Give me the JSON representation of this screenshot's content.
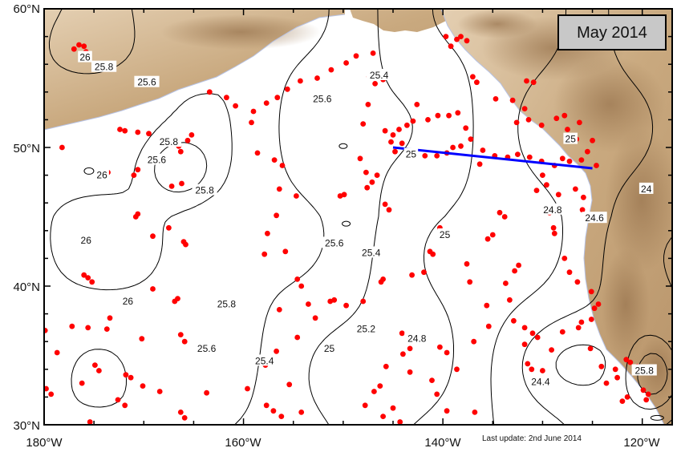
{
  "title": "May 2014",
  "update_note": "Last update: 2nd June 2014",
  "axes": {
    "lon_ticks": [
      "180°W",
      "160°W",
      "140°W",
      "120°W"
    ],
    "lat_ticks": [
      "60°N",
      "50°N",
      "40°N",
      "30°N"
    ],
    "lon_range": [
      -180,
      -117
    ],
    "lat_range": [
      30,
      60
    ]
  },
  "colors": {
    "land": "#d8bf9e",
    "land_shadow": "#a8875f",
    "contour": "#000000",
    "float": "#ff0000",
    "section": "#0000ff",
    "title_box": "#c8c8c8"
  },
  "section_line": {
    "from": {
      "lon": -145,
      "lat": 50
    },
    "to": {
      "lon": -125,
      "lat": 48.5
    }
  },
  "contour_labels": [
    {
      "text": "26",
      "lon": -175.9,
      "lat": 56.5
    },
    {
      "text": "25.8",
      "lon": -174.0,
      "lat": 55.8
    },
    {
      "text": "25.6",
      "lon": -169.7,
      "lat": 54.7
    },
    {
      "text": "25.6",
      "lon": -152.1,
      "lat": 53.5
    },
    {
      "text": "25.4",
      "lon": -146.4,
      "lat": 55.2
    },
    {
      "text": "25.8",
      "lon": -167.5,
      "lat": 50.4
    },
    {
      "text": "25.6",
      "lon": -168.7,
      "lat": 49.1
    },
    {
      "text": "26",
      "lon": -174.2,
      "lat": 48.0
    },
    {
      "text": "25.8",
      "lon": -163.9,
      "lat": 46.9
    },
    {
      "text": "25.6",
      "lon": -150.9,
      "lat": 43.1
    },
    {
      "text": "25.4",
      "lon": -147.2,
      "lat": 42.4
    },
    {
      "text": "26",
      "lon": -175.8,
      "lat": 43.3
    },
    {
      "text": "26",
      "lon": -171.6,
      "lat": 38.9
    },
    {
      "text": "25.8",
      "lon": -161.7,
      "lat": 38.7
    },
    {
      "text": "25.6",
      "lon": -163.7,
      "lat": 35.5
    },
    {
      "text": "25.4",
      "lon": -157.9,
      "lat": 34.6
    },
    {
      "text": "25.2",
      "lon": -147.7,
      "lat": 36.9
    },
    {
      "text": "25",
      "lon": -151.4,
      "lat": 35.5
    },
    {
      "text": "24.8",
      "lon": -142.6,
      "lat": 36.2
    },
    {
      "text": "25",
      "lon": -139.8,
      "lat": 43.7
    },
    {
      "text": "24.8",
      "lon": -129.0,
      "lat": 45.5
    },
    {
      "text": "24.6",
      "lon": -124.8,
      "lat": 44.9
    },
    {
      "text": "24.4",
      "lon": -130.2,
      "lat": 33.1
    },
    {
      "text": "25",
      "lon": -127.2,
      "lat": 50.6
    },
    {
      "text": "25",
      "lon": -143.2,
      "lat": 49.5
    },
    {
      "text": "24",
      "lon": -119.6,
      "lat": 47.0
    },
    {
      "text": "25.8",
      "lon": -119.8,
      "lat": 33.9
    }
  ],
  "floats": [
    [
      -176.5,
      57.4
    ],
    [
      -176.0,
      57.3
    ],
    [
      -177.0,
      57.1
    ],
    [
      -175.8,
      56.9
    ],
    [
      -171.9,
      51.2
    ],
    [
      -172.4,
      51.3
    ],
    [
      -170.6,
      51.1
    ],
    [
      -169.5,
      51.0
    ],
    [
      -168.2,
      50.3
    ],
    [
      -165.2,
      50.9
    ],
    [
      -165.6,
      50.5
    ],
    [
      -166.5,
      50.1
    ],
    [
      -166.3,
      49.7
    ],
    [
      -170.6,
      48.4
    ],
    [
      -171.0,
      48.0
    ],
    [
      -174.2,
      48.1
    ],
    [
      -173.6,
      48.2
    ],
    [
      -178.2,
      50.0
    ],
    [
      -167.2,
      47.2
    ],
    [
      -166.2,
      47.4
    ],
    [
      -170.6,
      45.2
    ],
    [
      -170.8,
      45.0
    ],
    [
      -167.5,
      44.2
    ],
    [
      -166.0,
      43.2
    ],
    [
      -165.8,
      43.0
    ],
    [
      -169.1,
      43.6
    ],
    [
      -176.0,
      40.8
    ],
    [
      -175.6,
      40.6
    ],
    [
      -175.2,
      40.3
    ],
    [
      -169.1,
      39.8
    ],
    [
      -166.6,
      39.1
    ],
    [
      -166.9,
      38.9
    ],
    [
      -173.4,
      37.7
    ],
    [
      -179.9,
      36.8
    ],
    [
      -177.2,
      37.1
    ],
    [
      -175.6,
      37.0
    ],
    [
      -173.7,
      36.9
    ],
    [
      -166.3,
      36.5
    ],
    [
      -165.9,
      36.0
    ],
    [
      -170.2,
      36.2
    ],
    [
      -178.7,
      35.2
    ],
    [
      -174.9,
      34.3
    ],
    [
      -174.5,
      33.9
    ],
    [
      -171.8,
      33.6
    ],
    [
      -171.3,
      33.4
    ],
    [
      -170.1,
      32.8
    ],
    [
      -168.4,
      32.4
    ],
    [
      -179.8,
      32.6
    ],
    [
      -179.3,
      32.2
    ],
    [
      -176.2,
      33.0
    ],
    [
      -172.6,
      31.8
    ],
    [
      -171.9,
      31.4
    ],
    [
      -175.4,
      30.2
    ],
    [
      -166.3,
      30.9
    ],
    [
      -165.9,
      30.5
    ],
    [
      -163.7,
      32.3
    ],
    [
      -159.6,
      32.6
    ],
    [
      -157.7,
      31.4
    ],
    [
      -157.0,
      31.0
    ],
    [
      -156.2,
      30.6
    ],
    [
      -155.4,
      32.9
    ],
    [
      -154.2,
      30.9
    ],
    [
      -163.4,
      54.0
    ],
    [
      -161.7,
      53.6
    ],
    [
      -160.8,
      53.0
    ],
    [
      -159.0,
      52.6
    ],
    [
      -157.7,
      53.2
    ],
    [
      -156.6,
      53.6
    ],
    [
      -155.6,
      54.2
    ],
    [
      -154.3,
      54.8
    ],
    [
      -152.6,
      55.0
    ],
    [
      -151.2,
      55.6
    ],
    [
      -149.7,
      56.1
    ],
    [
      -148.7,
      56.6
    ],
    [
      -147.0,
      56.8
    ],
    [
      -159.2,
      51.8
    ],
    [
      -158.6,
      49.6
    ],
    [
      -156.9,
      49.1
    ],
    [
      -156.1,
      48.7
    ],
    [
      -156.4,
      47.0
    ],
    [
      -154.7,
      46.5
    ],
    [
      -156.7,
      45.1
    ],
    [
      -157.6,
      43.8
    ],
    [
      -157.9,
      42.3
    ],
    [
      -155.8,
      42.5
    ],
    [
      -154.6,
      40.5
    ],
    [
      -154.2,
      40.0
    ],
    [
      -153.5,
      38.7
    ],
    [
      -152.8,
      37.7
    ],
    [
      -154.6,
      36.3
    ],
    [
      -156.7,
      35.3
    ],
    [
      -157.8,
      34.3
    ],
    [
      -156.4,
      38.3
    ],
    [
      -151.3,
      38.9
    ],
    [
      -150.9,
      39.0
    ],
    [
      -149.7,
      38.6
    ],
    [
      -148.0,
      38.9
    ],
    [
      -150.3,
      46.5
    ],
    [
      -149.9,
      46.6
    ],
    [
      -147.6,
      47.1
    ],
    [
      -147.1,
      47.5
    ],
    [
      -146.6,
      48.0
    ],
    [
      -147.7,
      48.2
    ],
    [
      -148.3,
      49.2
    ],
    [
      -148.0,
      51.7
    ],
    [
      -147.5,
      53.1
    ],
    [
      -146.8,
      54.6
    ],
    [
      -147.4,
      55.1
    ],
    [
      -146.0,
      54.9
    ],
    [
      -145.8,
      51.2
    ],
    [
      -145.0,
      50.9
    ],
    [
      -144.4,
      51.3
    ],
    [
      -143.6,
      51.6
    ],
    [
      -143.0,
      51.9
    ],
    [
      -144.1,
      50.3
    ],
    [
      -144.8,
      49.7
    ],
    [
      -145.2,
      50.4
    ],
    [
      -145.8,
      45.9
    ],
    [
      -145.4,
      45.5
    ],
    [
      -146.0,
      40.5
    ],
    [
      -146.2,
      40.3
    ],
    [
      -142.6,
      53.1
    ],
    [
      -141.5,
      52.0
    ],
    [
      -140.5,
      52.3
    ],
    [
      -139.4,
      52.3
    ],
    [
      -138.5,
      52.5
    ],
    [
      -137.7,
      51.4
    ],
    [
      -137.2,
      50.6
    ],
    [
      -136.0,
      49.8
    ],
    [
      -134.8,
      49.4
    ],
    [
      -133.5,
      49.3
    ],
    [
      -132.5,
      49.5
    ],
    [
      -131.3,
      49.3
    ],
    [
      -130.1,
      49.0
    ],
    [
      -128.8,
      48.7
    ],
    [
      -127.3,
      49.0
    ],
    [
      -126.1,
      49.1
    ],
    [
      -124.6,
      48.7
    ],
    [
      -125.5,
      49.7
    ],
    [
      -126.6,
      50.6
    ],
    [
      -127.5,
      51.3
    ],
    [
      -128.6,
      52.1
    ],
    [
      -127.8,
      52.3
    ],
    [
      -126.3,
      51.8
    ],
    [
      -125.0,
      50.5
    ],
    [
      -139.2,
      57.3
    ],
    [
      -138.6,
      57.8
    ],
    [
      -138.2,
      58.0
    ],
    [
      -137.6,
      57.7
    ],
    [
      -139.7,
      58.0
    ],
    [
      -137.0,
      55.1
    ],
    [
      -136.6,
      54.7
    ],
    [
      -134.7,
      53.5
    ],
    [
      -133.0,
      53.4
    ],
    [
      -131.6,
      54.8
    ],
    [
      -130.9,
      54.7
    ],
    [
      -131.8,
      52.8
    ],
    [
      -131.4,
      52.0
    ],
    [
      -130.1,
      51.6
    ],
    [
      -132.6,
      51.8
    ],
    [
      -138.2,
      50.1
    ],
    [
      -139.0,
      50.0
    ],
    [
      -139.6,
      49.6
    ],
    [
      -140.6,
      49.4
    ],
    [
      -141.8,
      49.4
    ],
    [
      -136.3,
      48.8
    ],
    [
      -134.3,
      45.3
    ],
    [
      -133.8,
      45.0
    ],
    [
      -135.0,
      43.7
    ],
    [
      -135.5,
      43.4
    ],
    [
      -140.3,
      44.2
    ],
    [
      -141.3,
      42.5
    ],
    [
      -141.0,
      42.3
    ],
    [
      -141.9,
      41.0
    ],
    [
      -143.1,
      40.8
    ],
    [
      -144.1,
      36.6
    ],
    [
      -143.3,
      35.5
    ],
    [
      -144.0,
      35.1
    ],
    [
      -145.7,
      34.2
    ],
    [
      -146.3,
      32.8
    ],
    [
      -146.9,
      32.4
    ],
    [
      -147.8,
      31.4
    ],
    [
      -146.0,
      30.6
    ],
    [
      -144.3,
      30.2
    ],
    [
      -145.0,
      31.2
    ],
    [
      -143.3,
      33.8
    ],
    [
      -141.1,
      33.2
    ],
    [
      -140.6,
      32.2
    ],
    [
      -139.6,
      31.0
    ],
    [
      -136.8,
      30.9
    ],
    [
      -138.6,
      34.0
    ],
    [
      -139.6,
      35.2
    ],
    [
      -140.3,
      35.6
    ],
    [
      -136.9,
      36.0
    ],
    [
      -135.4,
      37.1
    ],
    [
      -132.9,
      37.5
    ],
    [
      -131.8,
      37.0
    ],
    [
      -131.0,
      36.6
    ],
    [
      -130.5,
      36.3
    ],
    [
      -131.8,
      35.8
    ],
    [
      -131.5,
      34.4
    ],
    [
      -131.1,
      34.0
    ],
    [
      -130.0,
      33.9
    ],
    [
      -129.1,
      35.4
    ],
    [
      -128.0,
      36.7
    ],
    [
      -126.4,
      37.0
    ],
    [
      -126.1,
      37.4
    ],
    [
      -125.1,
      37.6
    ],
    [
      -124.8,
      38.4
    ],
    [
      -124.4,
      38.7
    ],
    [
      -125.1,
      39.6
    ],
    [
      -126.5,
      40.3
    ],
    [
      -127.3,
      41.0
    ],
    [
      -127.8,
      42.0
    ],
    [
      -128.8,
      43.8
    ],
    [
      -128.9,
      44.2
    ],
    [
      -129.3,
      45.3
    ],
    [
      -126.7,
      47.0
    ],
    [
      -125.9,
      46.4
    ],
    [
      -126.0,
      45.5
    ],
    [
      -128.4,
      46.6
    ],
    [
      -129.6,
      47.3
    ],
    [
      -130.0,
      48.0
    ],
    [
      -128.0,
      49.2
    ],
    [
      -130.6,
      46.9
    ],
    [
      -132.4,
      41.5
    ],
    [
      -132.8,
      41.1
    ],
    [
      -133.7,
      40.2
    ],
    [
      -133.3,
      39.0
    ],
    [
      -135.6,
      38.6
    ],
    [
      -137.3,
      40.3
    ],
    [
      -137.6,
      41.6
    ],
    [
      -121.6,
      34.7
    ],
    [
      -121.2,
      34.5
    ],
    [
      -120.5,
      34.2
    ],
    [
      -119.8,
      33.8
    ],
    [
      -119.4,
      32.2
    ],
    [
      -119.6,
      31.8
    ],
    [
      -119.9,
      32.5
    ],
    [
      -121.5,
      32.0
    ],
    [
      -122.0,
      31.7
    ],
    [
      -122.7,
      34.0
    ],
    [
      -123.6,
      33.0
    ],
    [
      -122.5,
      33.4
    ],
    [
      -124.1,
      34.2
    ],
    [
      -125.2,
      35.5
    ]
  ]
}
